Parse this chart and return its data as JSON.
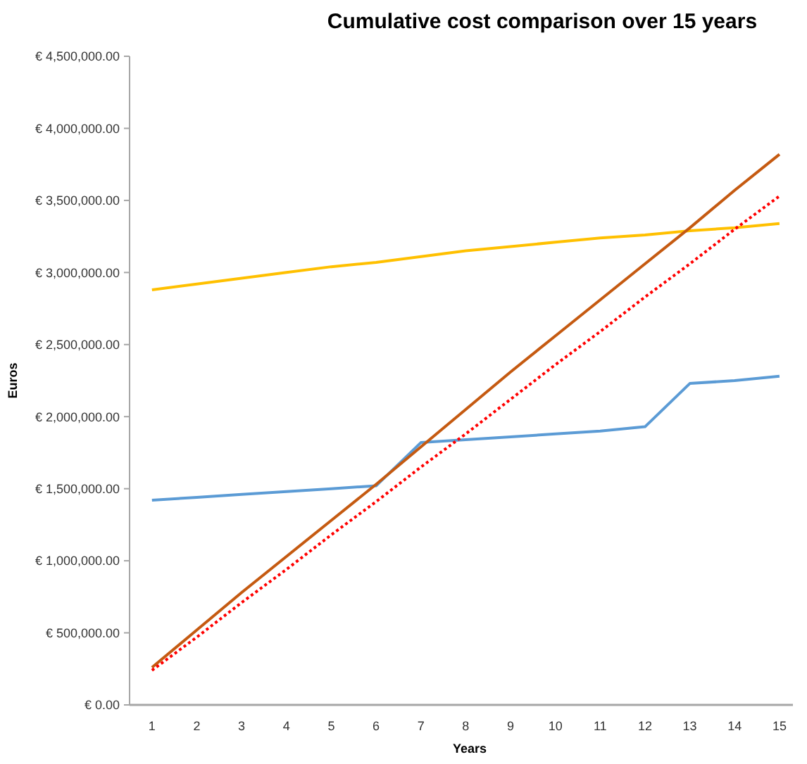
{
  "chart_data": {
    "type": "line",
    "title": "Cumulative cost comparison over 15 years",
    "xlabel": "Years",
    "ylabel": "Euros",
    "x": [
      1,
      2,
      3,
      4,
      5,
      6,
      7,
      8,
      9,
      10,
      11,
      12,
      13,
      14,
      15
    ],
    "xlim": [
      0.5,
      15.3
    ],
    "xticks": [
      1,
      2,
      3,
      4,
      5,
      6,
      7,
      8,
      9,
      10,
      11,
      12,
      13,
      14,
      15
    ],
    "ylim": [
      0,
      4500000
    ],
    "yticks": [
      {
        "value": 0,
        "label": "€ 0.00"
      },
      {
        "value": 500000,
        "label": "€ 500,000.00"
      },
      {
        "value": 1000000,
        "label": "€ 1,000,000.00"
      },
      {
        "value": 1500000,
        "label": "€ 1,500,000.00"
      },
      {
        "value": 2000000,
        "label": "€ 2,000,000.00"
      },
      {
        "value": 2500000,
        "label": "€ 2,500,000.00"
      },
      {
        "value": 3000000,
        "label": "€ 3,000,000.00"
      },
      {
        "value": 3500000,
        "label": "€ 3,500,000.00"
      },
      {
        "value": 4000000,
        "label": "€ 4,000,000.00"
      },
      {
        "value": 4500000,
        "label": "€ 4,500,000.00"
      }
    ],
    "grid": false,
    "series": [
      {
        "color": "#5b9bd5",
        "values": [
          1420000,
          1440000,
          1460000,
          1480000,
          1500000,
          1520000,
          1820000,
          1840000,
          1860000,
          1880000,
          1900000,
          1930000,
          2230000,
          2250000,
          2280000
        ]
      },
      {
        "color": "#ffc000",
        "values": [
          2880000,
          2920000,
          2960000,
          3000000,
          3040000,
          3070000,
          3110000,
          3150000,
          3180000,
          3210000,
          3240000,
          3260000,
          3290000,
          3310000,
          3340000
        ]
      },
      {
        "color": "#c55a11",
        "values": [
          260000,
          520000,
          780000,
          1030000,
          1280000,
          1530000,
          1790000,
          2050000,
          2310000,
          2560000,
          2810000,
          3060000,
          3310000,
          3570000,
          3820000
        ]
      },
      {
        "color": "#ff0000",
        "line_style": "dotted",
        "values": [
          240000,
          470000,
          710000,
          940000,
          1180000,
          1410000,
          1650000,
          1880000,
          2120000,
          2360000,
          2590000,
          2830000,
          3060000,
          3300000,
          3530000
        ]
      }
    ]
  }
}
